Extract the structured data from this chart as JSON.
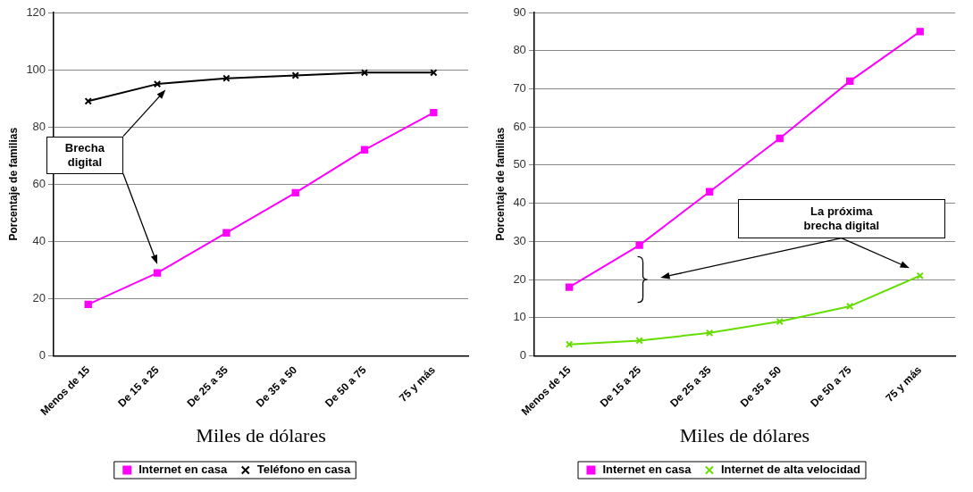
{
  "chart_data": [
    {
      "type": "line",
      "xlabel": "Miles de dólares",
      "ylabel": "Porcentaje de familias",
      "categories": [
        "Menos de 15",
        "De 15 a 25",
        "De 25 a 35",
        "De 35 a 50",
        "De 50 a 75",
        "75 y más"
      ],
      "series": [
        {
          "name": "Internet en casa",
          "color": "#ff00ff",
          "marker": "square",
          "values": [
            18,
            29,
            43,
            57,
            72,
            85
          ]
        },
        {
          "name": "Teléfono en casa",
          "color": "#000000",
          "marker": "cross",
          "values": [
            89,
            95,
            97,
            98,
            99,
            99
          ]
        }
      ],
      "ylim": [
        0,
        120
      ],
      "yticks": [
        0,
        20,
        40,
        60,
        80,
        100,
        120
      ],
      "grid": "y",
      "legend": "bottom",
      "annotations": [
        "Brecha digital"
      ]
    },
    {
      "type": "line",
      "xlabel": "Miles de dólares",
      "ylabel": "Porcentaje de familias",
      "categories": [
        "Menos de 15",
        "De 15 a 25",
        "De 25 a 35",
        "De 35 a 50",
        "De 50 a 75",
        "75 y más"
      ],
      "series": [
        {
          "name": "Internet en casa",
          "color": "#ff00ff",
          "marker": "square",
          "values": [
            18,
            29,
            43,
            57,
            72,
            85
          ]
        },
        {
          "name": "Internet de alta velocidad",
          "color": "#66dd00",
          "marker": "cross",
          "values": [
            3,
            4,
            6,
            9,
            13,
            21
          ]
        }
      ],
      "ylim": [
        0,
        90
      ],
      "yticks": [
        0,
        10,
        20,
        30,
        40,
        50,
        60,
        70,
        80,
        90
      ],
      "grid": "y",
      "legend": "bottom",
      "annotations": [
        "La próxima brecha digital"
      ]
    }
  ]
}
